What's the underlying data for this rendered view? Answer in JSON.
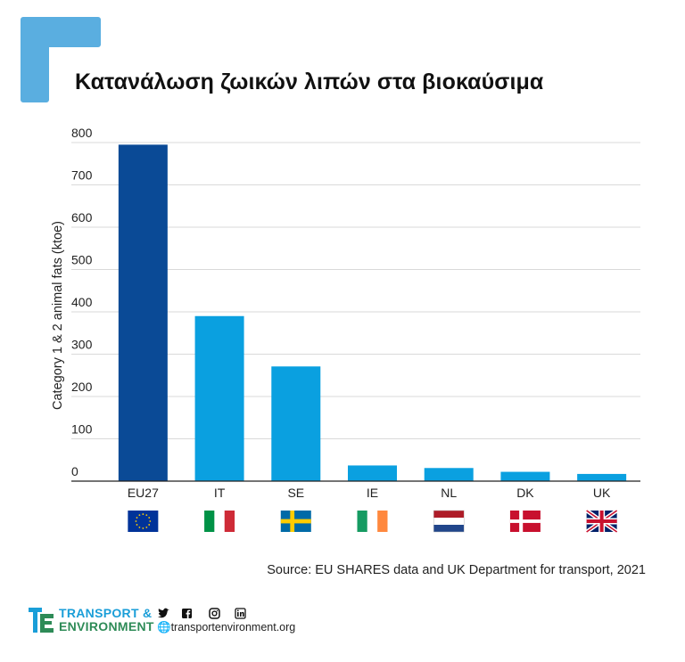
{
  "title": "Κατανάλωση ζωικών λιπών στα βιοκαύσιμα",
  "source": "Source: EU SHARES data and UK Department for transport, 2021",
  "footer": {
    "brand_line1": "TRANSPORT &",
    "brand_line2": "ENVIRONMENT",
    "website": "transportenvironment.org",
    "social_icons": [
      "twitter-icon",
      "facebook-icon",
      "instagram-icon",
      "linkedin-icon"
    ]
  },
  "colors": {
    "accent": "#5aaee0",
    "bar_eu": "#0a4a96",
    "bar_country": "#0aa0e0",
    "grid": "#d9d9d9"
  },
  "chart_data": {
    "type": "bar",
    "categories": [
      "EU27",
      "IT",
      "SE",
      "IE",
      "NL",
      "DK",
      "UK"
    ],
    "values": [
      795,
      390,
      271,
      37,
      31,
      22,
      17
    ],
    "flags": [
      "eu-flag-icon",
      "italy-flag-icon",
      "sweden-flag-icon",
      "ireland-flag-icon",
      "netherlands-flag-icon",
      "denmark-flag-icon",
      "uk-flag-icon"
    ],
    "ylabel": "Category 1 & 2 animal fats (ktoe)",
    "ylim": [
      0,
      800
    ],
    "yticks": [
      0,
      100,
      200,
      300,
      400,
      500,
      600,
      700,
      800
    ],
    "grid": true
  }
}
